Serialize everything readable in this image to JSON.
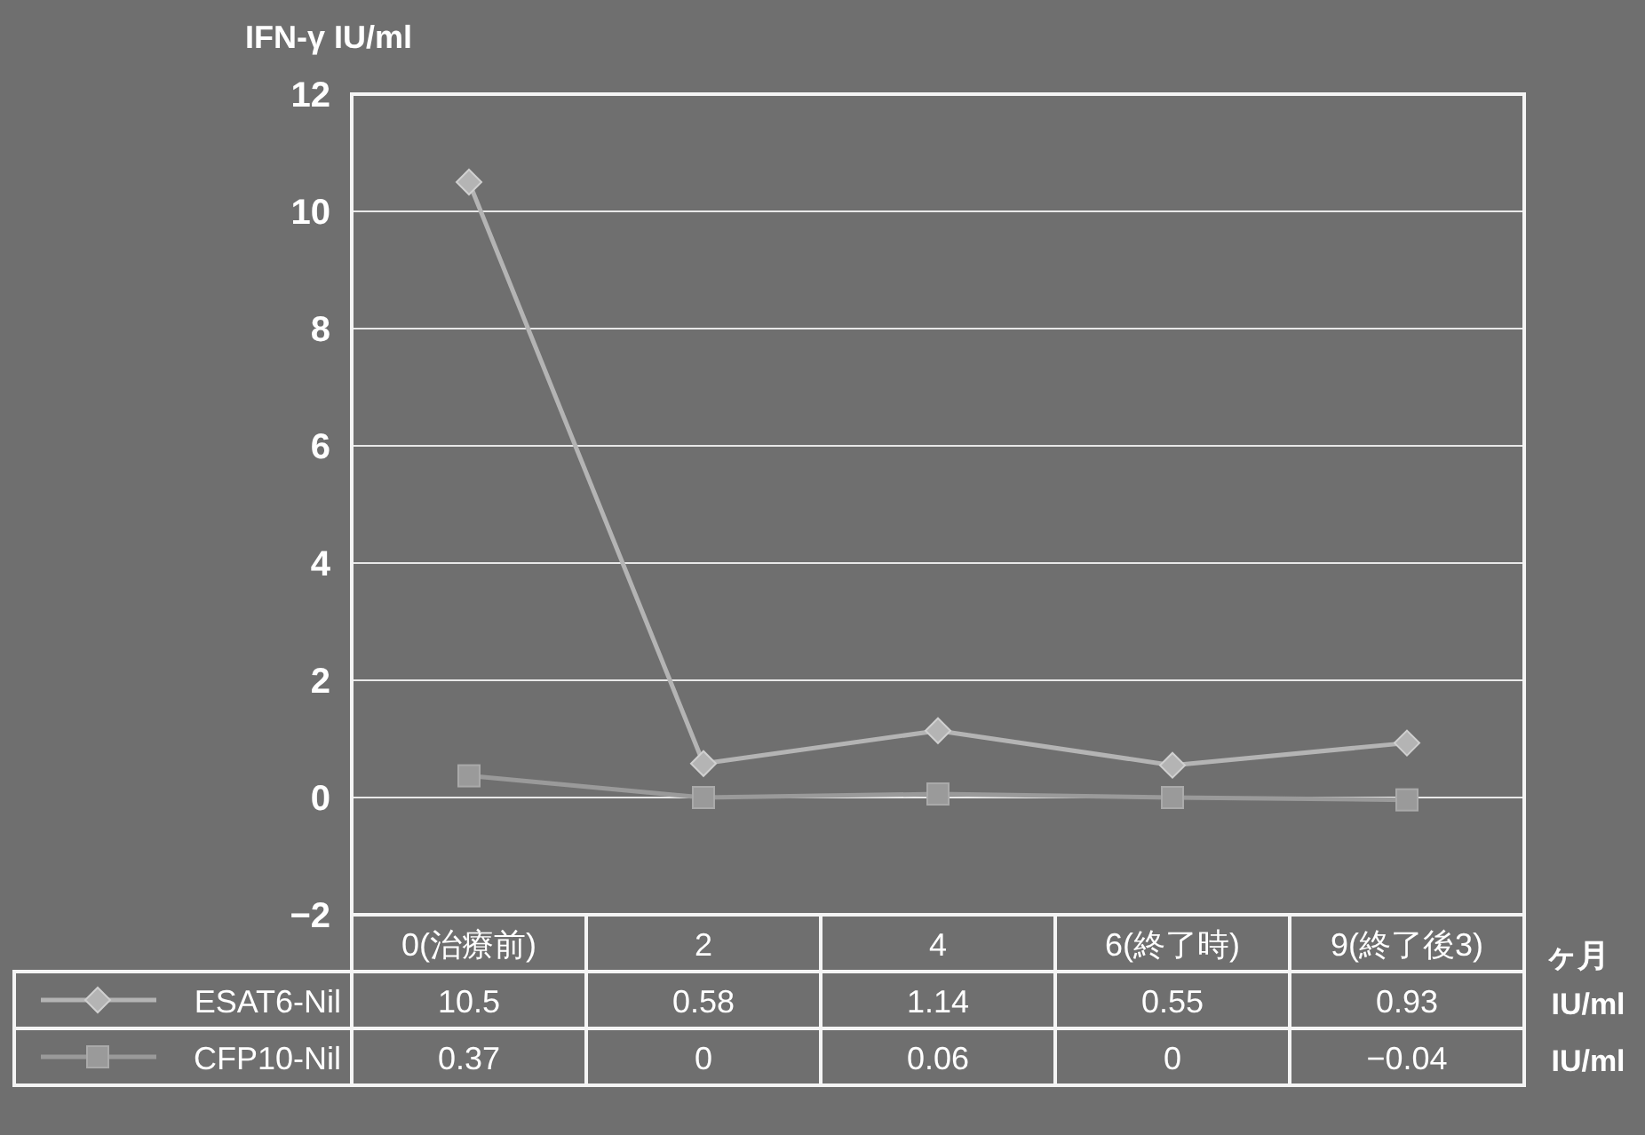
{
  "chart_data": {
    "type": "line",
    "ylabel": "IFN-γ IU/ml",
    "xlabel": "ヶ月",
    "categories": [
      "0(治療前)",
      "2",
      "4",
      "6(終了時)",
      "9(終了後3)"
    ],
    "series": [
      {
        "name": "ESAT6-Nil",
        "color": "#b4b4b4",
        "marker": "diamond",
        "values": [
          10.5,
          0.58,
          1.14,
          0.55,
          0.93
        ]
      },
      {
        "name": "CFP10-Nil",
        "color": "#9a9a9a",
        "marker": "square",
        "values": [
          0.37,
          0,
          0.06,
          0,
          -0.04
        ]
      }
    ],
    "ylim": [
      -2,
      12
    ],
    "yticks": [
      -2,
      0,
      2,
      4,
      6,
      8,
      10,
      12
    ],
    "grid": "y",
    "legend": "bottom",
    "data_labels": true,
    "annotations": [
      "IU/ml",
      "IU/ml"
    ]
  }
}
